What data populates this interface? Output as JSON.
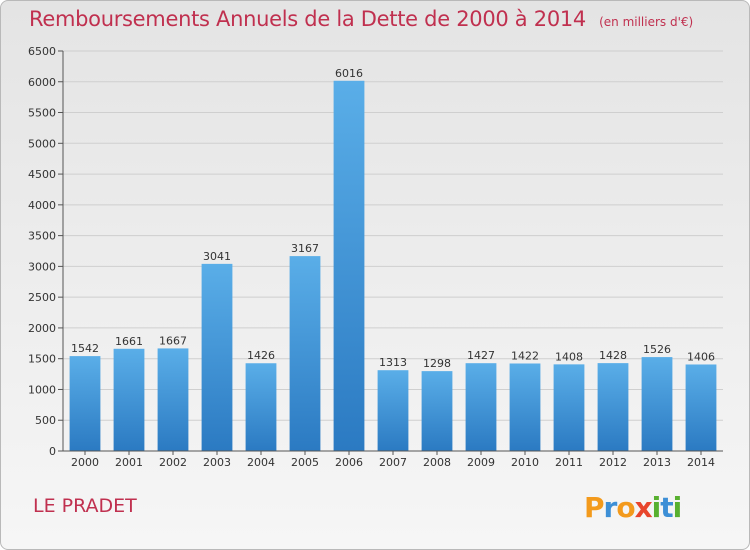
{
  "header": {
    "title": "Remboursements Annuels de la Dette de 2000 à 2014",
    "unit": "(en milliers d'€)"
  },
  "footer": {
    "town": "LE PRADET",
    "logo_text": "Proxiti"
  },
  "colors": {
    "title": "#c0304f",
    "bar_top": "#5aaee8",
    "bar_bottom": "#2b7ac2"
  },
  "chart_data": {
    "type": "bar",
    "title": "Remboursements Annuels de la Dette de 2000 à 2014",
    "subtitle": "(en milliers d'€)",
    "xlabel": "",
    "ylabel": "",
    "categories": [
      "2000",
      "2001",
      "2002",
      "2003",
      "2004",
      "2005",
      "2006",
      "2007",
      "2008",
      "2009",
      "2010",
      "2011",
      "2012",
      "2013",
      "2014"
    ],
    "values": [
      1542,
      1661,
      1667,
      3041,
      1426,
      3167,
      6016,
      1313,
      1298,
      1427,
      1422,
      1408,
      1428,
      1526,
      1406
    ],
    "ylim": [
      0,
      6500
    ],
    "yticks": [
      0,
      500,
      1000,
      1500,
      2000,
      2500,
      3000,
      3500,
      4000,
      4500,
      5000,
      5500,
      6000,
      6500
    ],
    "grid": true,
    "legend": "none"
  }
}
